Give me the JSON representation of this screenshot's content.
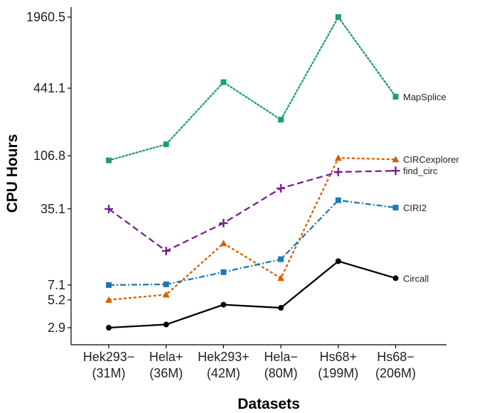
{
  "chart_data": {
    "type": "line",
    "title": "",
    "xlabel": "Datasets",
    "ylabel": "CPU Hours",
    "y_scale": "log",
    "y_ticks": [
      2.9,
      5.2,
      7.1,
      35.1,
      106.8,
      441.1,
      1960.5
    ],
    "ylim": [
      2.5,
      2200
    ],
    "categories": [
      {
        "line1": "Hek293−",
        "line2": "(31M)"
      },
      {
        "line1": "Hela+",
        "line2": "(36M)"
      },
      {
        "line1": "Hek293+",
        "line2": "(42M)"
      },
      {
        "line1": "Hela−",
        "line2": "(80M)"
      },
      {
        "line1": "Hs68+",
        "line2": "(199M)"
      },
      {
        "line1": "Hs68−",
        "line2": "(206M)"
      }
    ],
    "series": [
      {
        "name": "MapSplice",
        "color": "#1b9e77",
        "dash": "dotted",
        "marker": "square",
        "values": [
          97,
          136,
          500,
          228,
          1960.5,
          369
        ]
      },
      {
        "name": "CIRCexplorer",
        "color": "#d95f02",
        "dash": "short-dash",
        "marker": "triangle",
        "values": [
          5.2,
          5.8,
          17,
          8.2,
          102,
          99
        ]
      },
      {
        "name": "find_circ",
        "color": "#7b1f8e",
        "dash": "long-dash",
        "marker": "plus",
        "values": [
          35,
          14.5,
          26,
          54,
          76,
          78
        ]
      },
      {
        "name": "CIRI2",
        "color": "#1f78b4",
        "dash": "dash-dot",
        "marker": "square",
        "values": [
          7.1,
          7.2,
          9.3,
          12.2,
          42,
          36
        ]
      },
      {
        "name": "Circall",
        "color": "#000000",
        "dash": "solid",
        "marker": "circle",
        "values": [
          2.9,
          3.1,
          4.7,
          4.4,
          11.7,
          8.2
        ]
      }
    ]
  }
}
